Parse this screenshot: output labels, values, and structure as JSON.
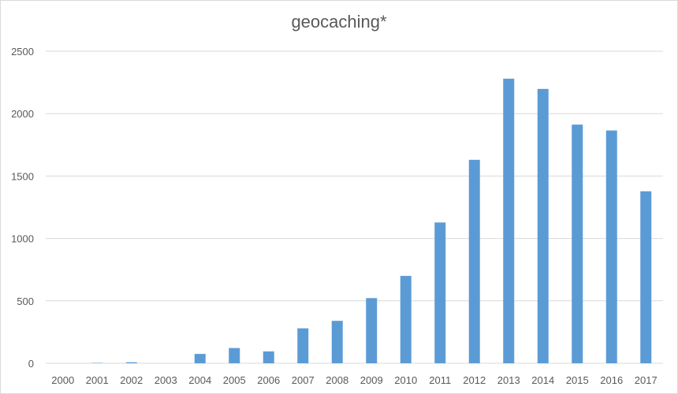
{
  "chart_data": {
    "type": "bar",
    "title": "geocaching*",
    "xlabel": "",
    "ylabel": "",
    "categories": [
      "2000",
      "2001",
      "2002",
      "2003",
      "2004",
      "2005",
      "2006",
      "2007",
      "2008",
      "2009",
      "2010",
      "2011",
      "2012",
      "2013",
      "2014",
      "2015",
      "2016",
      "2017"
    ],
    "values": [
      0,
      3,
      8,
      0,
      75,
      122,
      95,
      280,
      340,
      522,
      700,
      1128,
      1630,
      2280,
      2198,
      1912,
      1865,
      1378
    ],
    "ylim": [
      0,
      2500
    ],
    "yticks": [
      0,
      500,
      1000,
      1500,
      2000,
      2500
    ],
    "grid": true,
    "legend": "none",
    "bar_color": "#5b9bd5",
    "grid_color": "#d9d9d9",
    "text_color": "#595959"
  }
}
